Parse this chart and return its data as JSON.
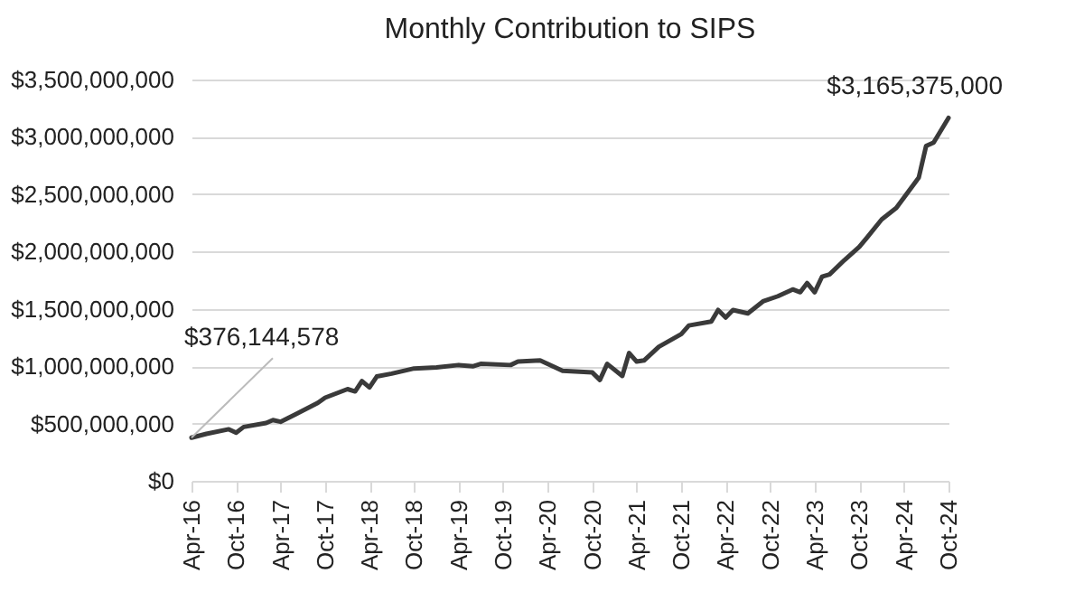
{
  "chart_data": {
    "type": "line",
    "title": "Monthly Contribution to SIPS",
    "x": [
      "2016-04",
      "2016-06",
      "2016-09",
      "2016-10",
      "2016-11",
      "2017-02",
      "2017-03",
      "2017-04",
      "2017-06",
      "2017-09",
      "2017-10",
      "2018-01",
      "2018-02",
      "2018-03",
      "2018-04",
      "2018-05",
      "2018-07",
      "2018-10",
      "2019-01",
      "2019-04",
      "2019-06",
      "2019-07",
      "2019-11",
      "2019-12",
      "2020-03",
      "2020-06",
      "2020-10",
      "2020-11",
      "2020-12",
      "2021-02",
      "2021-03",
      "2021-04",
      "2021-05",
      "2021-07",
      "2021-10",
      "2021-11",
      "2022-02",
      "2022-03",
      "2022-04",
      "2022-05",
      "2022-07",
      "2022-09",
      "2022-11",
      "2023-01",
      "2023-02",
      "2023-03",
      "2023-04",
      "2023-05",
      "2023-06",
      "2023-08",
      "2023-10",
      "2023-11",
      "2024-01",
      "2024-03",
      "2024-06",
      "2024-07",
      "2024-08",
      "2024-10"
    ],
    "series": [
      {
        "color": "#3a3a3a",
        "values": [
          376144578,
          410000000,
          450000000,
          420000000,
          470000000,
          505000000,
          530000000,
          515000000,
          580000000,
          680000000,
          725000000,
          800000000,
          780000000,
          870000000,
          815000000,
          910000000,
          935000000,
          980000000,
          990000000,
          1010000000,
          1000000000,
          1020000000,
          1010000000,
          1040000000,
          1050000000,
          960000000,
          945000000,
          880000000,
          1020000000,
          915000000,
          1115000000,
          1040000000,
          1050000000,
          1170000000,
          1280000000,
          1355000000,
          1390000000,
          1490000000,
          1425000000,
          1490000000,
          1460000000,
          1565000000,
          1610000000,
          1670000000,
          1645000000,
          1725000000,
          1645000000,
          1780000000,
          1800000000,
          1925000000,
          2040000000,
          2120000000,
          2280000000,
          2380000000,
          2645000000,
          2920000000,
          2950000000,
          3165375000
        ]
      }
    ],
    "xlim": [
      "2016-04",
      "2024-10"
    ],
    "xticks": [
      {
        "value": "2016-04",
        "label": "Apr-16"
      },
      {
        "value": "2016-10",
        "label": "Oct-16"
      },
      {
        "value": "2017-04",
        "label": "Apr-17"
      },
      {
        "value": "2017-10",
        "label": "Oct-17"
      },
      {
        "value": "2018-04",
        "label": "Apr-18"
      },
      {
        "value": "2018-10",
        "label": "Oct-18"
      },
      {
        "value": "2019-04",
        "label": "Apr-19"
      },
      {
        "value": "2019-10",
        "label": "Oct-19"
      },
      {
        "value": "2020-04",
        "label": "Apr-20"
      },
      {
        "value": "2020-10",
        "label": "Oct-20"
      },
      {
        "value": "2021-04",
        "label": "Apr-21"
      },
      {
        "value": "2021-10",
        "label": "Oct-21"
      },
      {
        "value": "2022-04",
        "label": "Apr-22"
      },
      {
        "value": "2022-10",
        "label": "Oct-22"
      },
      {
        "value": "2023-04",
        "label": "Apr-23"
      },
      {
        "value": "2023-10",
        "label": "Oct-23"
      },
      {
        "value": "2024-04",
        "label": "Apr-24"
      },
      {
        "value": "2024-10",
        "label": "Oct-24"
      }
    ],
    "ylim": [
      0,
      3500000000
    ],
    "yticks": [
      {
        "value": 0,
        "label": "$0"
      },
      {
        "value": 500000000,
        "label": "$500,000,000"
      },
      {
        "value": 1000000000,
        "label": "$1,000,000,000"
      },
      {
        "value": 1500000000,
        "label": "$1,500,000,000"
      },
      {
        "value": 2000000000,
        "label": "$2,000,000,000"
      },
      {
        "value": 2500000000,
        "label": "$2,500,000,000"
      },
      {
        "value": 3000000000,
        "label": "$3,000,000,000"
      },
      {
        "value": 3500000000,
        "label": "$3,500,000,000"
      }
    ],
    "grid": "y",
    "marker": "none",
    "line_style": "solid",
    "annotations": [
      {
        "text": "$376,144,578",
        "x": "2016-04",
        "y": 376144578
      },
      {
        "text": "$3,165,375,000",
        "x": "2024-10",
        "y": 3165375000
      }
    ]
  }
}
